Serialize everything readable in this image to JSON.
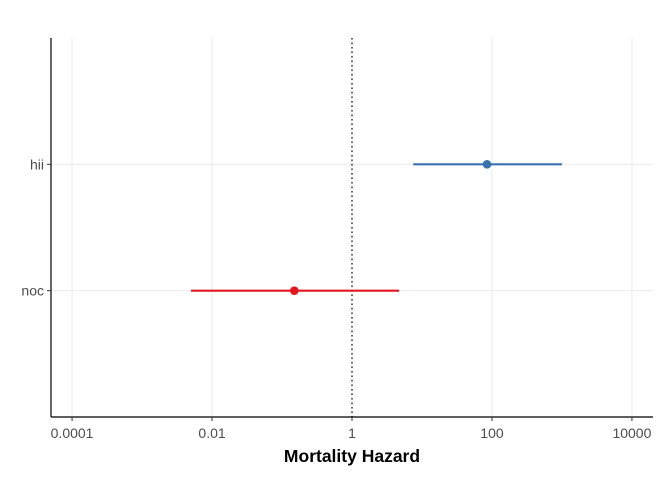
{
  "chart_data": {
    "type": "scatter",
    "subtype": "forest-plot",
    "title": "",
    "xlabel": "Mortality Hazard",
    "ylabel": "",
    "x_scale": "log10",
    "xlim": [
      5e-05,
      20000
    ],
    "x_ticks": [
      0.0001,
      0.01,
      1,
      100,
      10000
    ],
    "x_tick_labels": [
      "0.0001",
      "0.01",
      "1",
      "100",
      "10000"
    ],
    "reference_line": {
      "x": 1,
      "style": "dotted",
      "color": "#000000"
    },
    "categories": [
      "noc",
      "hii"
    ],
    "points": [
      {
        "label": "hii",
        "estimate": 85,
        "lower": 7.5,
        "upper": 1000,
        "color": "#3a72b0"
      },
      {
        "label": "noc",
        "estimate": 0.15,
        "lower": 0.005,
        "upper": 4.7,
        "color": "#e2161e"
      }
    ],
    "grid": true,
    "legend": "none"
  }
}
